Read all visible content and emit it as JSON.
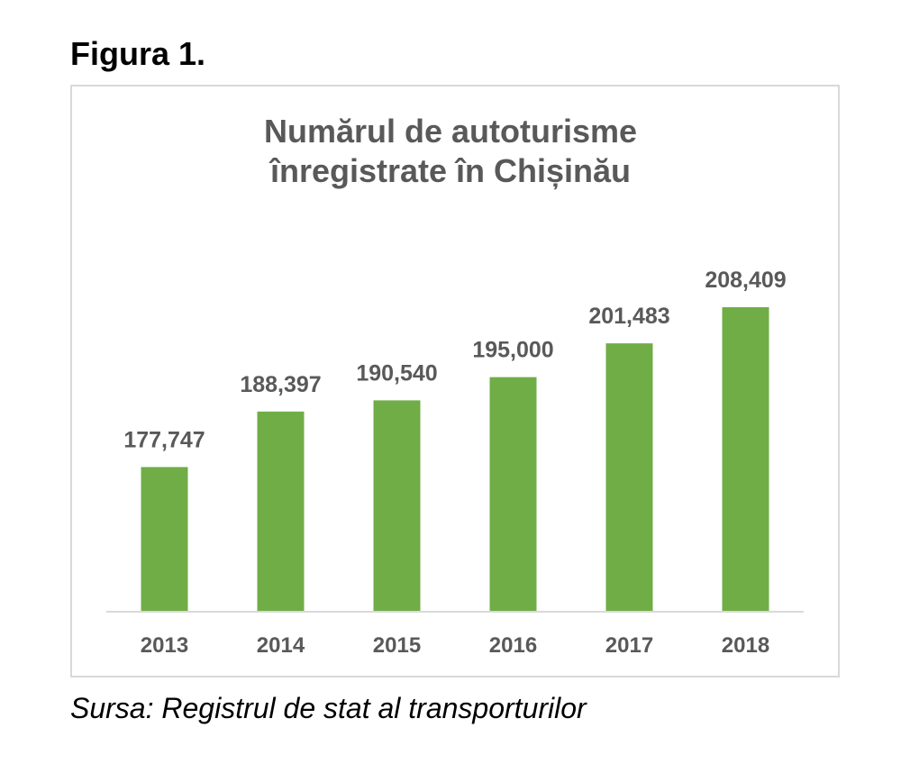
{
  "figure_label": "Figura 1.",
  "source_note": "Sursa: Registrul de stat al transporturilor",
  "colors": {
    "bar": "#70ad47",
    "label_text": "#595959",
    "axis_line": "#d9d9d9",
    "frame_border": "#d9d9d9"
  },
  "chart_data": {
    "type": "bar",
    "title_lines": [
      "Numărul de autoturisme",
      "înregistrate în Chișinău"
    ],
    "title": "Numărul de autoturisme înregistrate în Chișinău",
    "categories": [
      "2013",
      "2014",
      "2015",
      "2016",
      "2017",
      "2018"
    ],
    "values": [
      177747,
      188397,
      190540,
      195000,
      201483,
      208409
    ],
    "data_labels": [
      "177,747",
      "188,397",
      "190,540",
      "195,000",
      "201,483",
      "208,409"
    ],
    "xlabel": "",
    "ylabel": "",
    "ylim": [
      150000,
      210000
    ],
    "grid": false,
    "legend": "none"
  }
}
